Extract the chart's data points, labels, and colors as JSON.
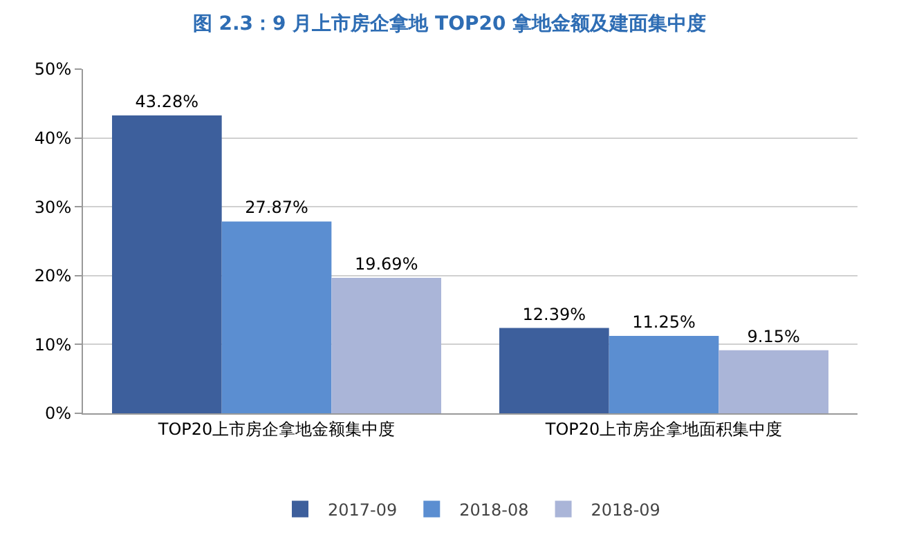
{
  "chart_data": {
    "type": "bar",
    "title": "图 2.3：9 月上市房企拿地 TOP20 拿地金额及建面集中度",
    "categories": [
      "TOP20上市房企拿地金额集中度",
      "TOP20上市房企拿地面积集中度"
    ],
    "series": [
      {
        "name": "2017-09",
        "color": "#3d5f9c",
        "values": [
          43.28,
          12.39
        ],
        "value_labels": [
          "43.28%",
          "12.39%"
        ]
      },
      {
        "name": "2018-08",
        "color": "#5b8ed1",
        "values": [
          27.87,
          11.25
        ],
        "value_labels": [
          "27.87%",
          "11.25%"
        ]
      },
      {
        "name": "2018-09",
        "color": "#aab5d8",
        "values": [
          19.69,
          9.15
        ],
        "value_labels": [
          "19.69%",
          "9.15%"
        ]
      }
    ],
    "ylim": [
      0,
      50
    ],
    "yticks": [
      {
        "value": 0,
        "label": "0%"
      },
      {
        "value": 10,
        "label": "10%"
      },
      {
        "value": 20,
        "label": "20%"
      },
      {
        "value": 30,
        "label": "30%"
      },
      {
        "value": 40,
        "label": "40%"
      },
      {
        "value": 50,
        "label": "50%"
      }
    ],
    "grid": "y",
    "legend": "bottom"
  }
}
